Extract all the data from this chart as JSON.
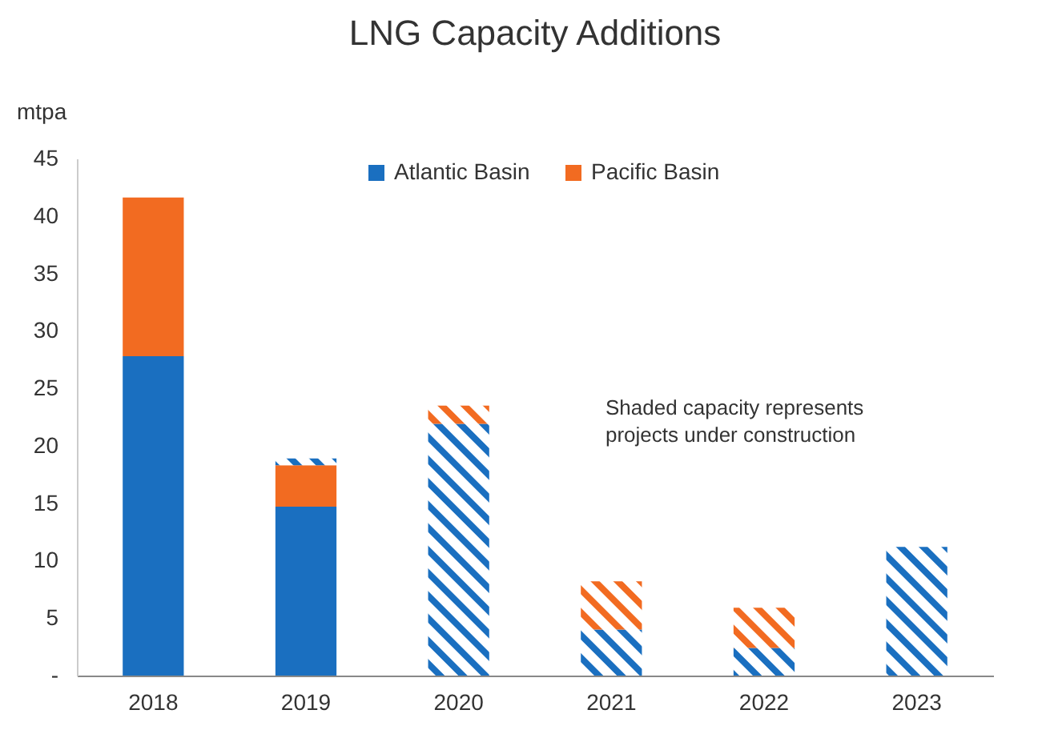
{
  "chart_data": {
    "type": "bar",
    "title": "LNG Capacity Additions",
    "ylabel": "mtpa",
    "categories": [
      "2018",
      "2019",
      "2020",
      "2021",
      "2022",
      "2023"
    ],
    "stacked": true,
    "series": [
      {
        "name": "Atlantic Basin",
        "color": "#1a6fc0",
        "values": [
          27.8,
          14.7,
          null,
          null,
          null,
          null
        ]
      },
      {
        "name": "Pacific Basin",
        "color": "#f26b21",
        "values": [
          13.8,
          3.6,
          null,
          null,
          null,
          null
        ]
      },
      {
        "color": "#1a6fc0",
        "values": [
          null,
          0.6,
          21.9,
          4.0,
          2.4,
          11.2
        ]
      },
      {
        "color": "#f26b21",
        "values": [
          null,
          null,
          1.6,
          4.2,
          3.5,
          null
        ]
      }
    ],
    "ylim": [
      0,
      45
    ],
    "yticks": [
      {
        "value": 0,
        "label": "-"
      },
      5,
      10,
      15,
      20,
      25,
      30,
      35,
      40,
      45
    ],
    "annotations": [
      "Shaded capacity represents\nprojects under construction"
    ],
    "legend": "top",
    "grid": false
  }
}
